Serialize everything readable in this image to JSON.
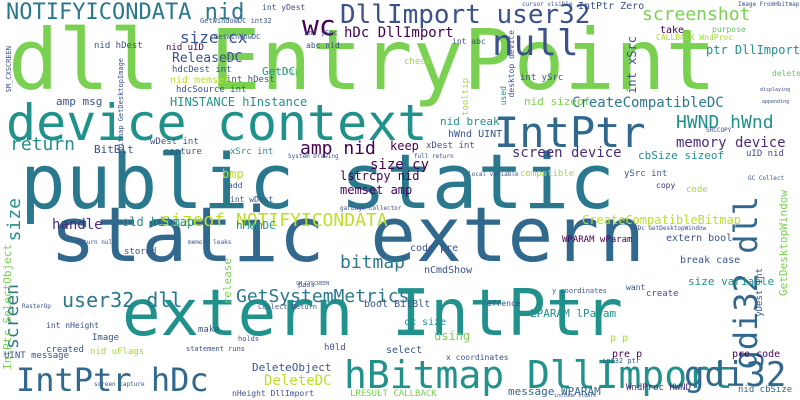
{
  "words": {
    "public_static": "public static",
    "static_extern": "static extern",
    "extern_intptr": "extern IntPtr",
    "dll_entrypoint": "dll EntryPoint",
    "device_context": "device context",
    "intptr": "IntPtr",
    "null": "null",
    "intptr_hdc": "IntPtr hDc",
    "hbitmap_dllimport": "hBitmap DllImport",
    "gdi32_dll": "gdi32 dll",
    "gdi32": "gdi32",
    "dllimport_user32": "DllImport user32",
    "notifyicondata_nid": "NOTIFYICONDATA nid",
    "wc": "wc",
    "screenshot": "screenshot",
    "hwnd_hwnd": "HWND hWnd",
    "screen_device": "screen device",
    "memory_device": "memory device",
    "getsystemmetrics": "GetSystemMetrics",
    "user32_dll": "user32 dll",
    "bitmap": "bitmap",
    "sizeof_notifyicondata": "sizeof NOTIFYICONDATA",
    "createcompatibledc": "CreateCompatibleDC",
    "amp_nid": "amp nid",
    "size_cy": "size cy",
    "size_cx": "size cx",
    "hdc_dllimport": "hDc DllImport",
    "releasedc": "ReleaseDC",
    "hinstance_hinstance": "HINSTANCE hInstance",
    "deletedc": "DeleteDC",
    "deleteobject": "DeleteObject",
    "getdc": "GetDC",
    "return": "return",
    "handle": "handle",
    "screen": "screen",
    "size": "size",
    "createcompatiblebitmap": "CreateCompatibleBitmap",
    "memset_amp": "memset amp",
    "lstrcpy_nid": "lstrcpy nid",
    "keep": "keep",
    "old_bitmap": "old bitmap",
    "intptr_selectobject": "IntPtr SelectObject",
    "hmemdc": "hMemDC",
    "cbsize_sizeof": "cbSize sizeof",
    "getdesktopwindow": "GetDesktopWindow",
    "lparam_lparam": "LPARAM lParam",
    "wparam_wparam": "WPARAM wParam",
    "message_wparam": "message WPARAM",
    "nid_sizeof": "nid sizeof",
    "nid_break": "nid break",
    "hwnd_uint": "hWnd UINT",
    "amp_msg": "amp msg",
    "bitblt": "BitBlt",
    "capture": "capture",
    "xsrc_int": "xSrc int",
    "wdest_int": "wDest int",
    "hdcdest_int": "hdcDest int",
    "nid_uid": "nid uID",
    "intptr_zero": "IntPtr Zero",
    "ptr_dllimport": "ptr DllImport",
    "take": "take",
    "purpose": "purpose",
    "pre_code": "pre code",
    "p_p": "p p",
    "pre_p": "pre p",
    "uint_message": "UINT message",
    "nid_uflags": "nid uFlags",
    "lresult_callback": "LRESULT CALLBACK",
    "wndproc_hwnd": "WndProc HWND",
    "nid_cbsize": "nid cbSize",
    "select": "select",
    "using": "using",
    "ncmdshow": "nCmdShow",
    "bool_bitblt": "bool BitBlt",
    "extern_bool": "extern bool",
    "break_case": "break case",
    "size_variable": "size variable",
    "create": "create",
    "want": "want",
    "compatible": "compatible",
    "copy": "copy",
    "code": "code",
    "created": "created",
    "image": "Image",
    "make": "make",
    "stored": "stored",
    "release": "release",
    "bmp": "bmp",
    "tip": "tip",
    "check": "check",
    "tooltip": "tooltip",
    "used": "used",
    "delete": "delete",
    "int_ysrc": "int ySrc",
    "ysrc_int": "ySrc int",
    "int_hdest": "int hDest",
    "int_wdest": "int wDest",
    "int_ydest": "int yDest",
    "int_xsrc": "int xSrc",
    "ydest_int": "yDest int",
    "cx_size": "cx size",
    "int_nheight": "int nHeight",
    "uid_nid": "uID nid",
    "gc_collect": "GC Collect",
    "x_coordinates": "x coordinates",
    "y_coordinates": "y coordinates",
    "callback_wndproc": "CALLBACK WndProc",
    "int_ptr": "int32 ptr",
    "xdest_int": "xDest int",
    "nid_memset": "nid memset",
    "abc_nid": "abc nid",
    "int_abc": "int abc",
    "nid_hdest": "nid hDest",
    "hdcsource_int": "hdcSource int",
    "getwindowdc": "GetWindowDC",
    "hdc_getdesktop": "hDc GetDesktopWindow",
    "refrence": "refrence",
    "desktop_device": "desktop device",
    "memory_leaks": "memory leaks",
    "pass": "pass",
    "h0ld": "h0ld",
    "holds": "holds",
    "statement_runs": "statement runs",
    "return_null": "return null",
    "collect_return": "Collect Return",
    "code_pre": "code pre",
    "amp_nid_small": "amp nid",
    "getwindowdc_int": "GetWindowDC int32",
    "image_fromhbitmap": "Image FromHbitmap",
    "cursor_visible": "cursor visible",
    "int_hdest_small": "int hDest",
    "add": "add",
    "full_return": "full return",
    "keep_small": "keep",
    "local_variable": "local variable",
    "nheight_dllimport": "nHeight DllImport",
    "include_stdafx": "include stdafx",
    "screen_capture": "screen capture",
    "system_drawing": "System Drawing",
    "sm_cxscreen": "SM_CXSCREEN",
    "sm_cyscreen": "SM_CYSCREEN",
    "srccopy": "SRCCOPY",
    "rasterop": "RasterOp",
    "garbage_collector": "garbage collector",
    "bitmap_getdesktopimage": "bitmap GetDesktopImage",
    "displaying": "displaying",
    "appending": "appending",
    "int_yoffset": "int ySrc"
  },
  "colors": {
    "background": "#ffffff",
    "teal_dark": "#2a788e",
    "teal": "#21918c",
    "blue_dark": "#31688e",
    "indigo": "#3b528b",
    "purple_dark": "#440154",
    "purple": "#472d7b",
    "green": "#5ec962",
    "green_light": "#7ad151",
    "lime": "#a5db36",
    "yellow_green": "#bddf26",
    "yellow": "#fde725",
    "sea_green": "#28ae80",
    "mint": "#35b779"
  }
}
